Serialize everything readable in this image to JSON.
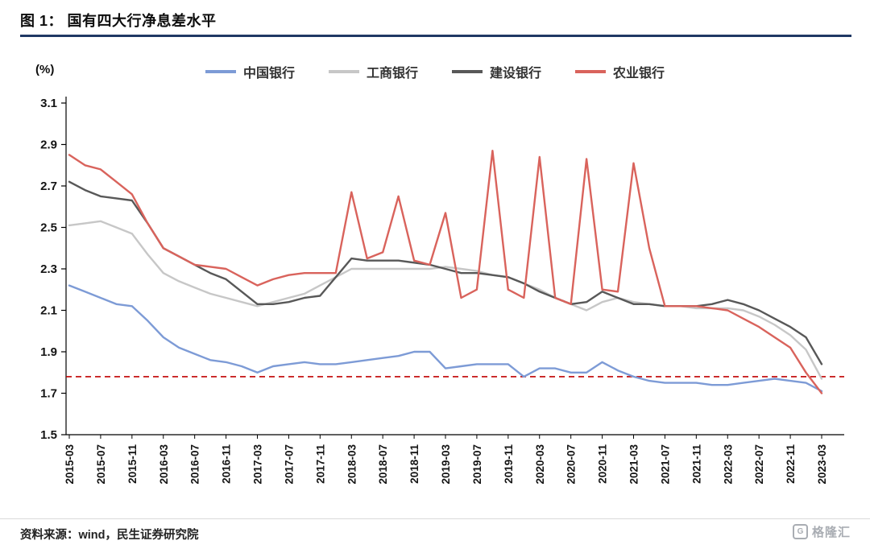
{
  "header": {
    "title": "图 1：  国有四大行净息差水平"
  },
  "chart_data": {
    "type": "line",
    "title": "国有四大行净息差水平",
    "y_axis": {
      "label": "(%)",
      "min": 1.5,
      "max": 3.1,
      "tick_step": 0.2,
      "tick_labels": [
        "1.5",
        "1.7",
        "1.9",
        "2.1",
        "2.3",
        "2.5",
        "2.7",
        "2.9",
        "3.1"
      ]
    },
    "x_labels": [
      "2015-03",
      "2015-07",
      "2015-11",
      "2016-03",
      "2016-07",
      "2016-11",
      "2017-03",
      "2017-07",
      "2017-11",
      "2018-03",
      "2018-07",
      "2018-11",
      "2019-03",
      "2019-07",
      "2019-11",
      "2020-03",
      "2020-07",
      "2020-11",
      "2021-03",
      "2021-07",
      "2021-11",
      "2022-03",
      "2022-07",
      "2022-11",
      "2023-03"
    ],
    "points_per_label": 2,
    "grid": false,
    "legend_position": "top",
    "reference_line": {
      "value": 1.78,
      "color": "#c00000",
      "style": "dashed"
    },
    "series": [
      {
        "name": "中国银行",
        "color": "#7d9bd6",
        "values": [
          2.22,
          2.19,
          2.16,
          2.13,
          2.12,
          2.05,
          1.97,
          1.92,
          1.89,
          1.86,
          1.85,
          1.83,
          1.8,
          1.83,
          1.84,
          1.85,
          1.84,
          1.84,
          1.85,
          1.86,
          1.87,
          1.88,
          1.9,
          1.9,
          1.82,
          1.83,
          1.84,
          1.84,
          1.84,
          1.78,
          1.82,
          1.82,
          1.8,
          1.8,
          1.85,
          1.81,
          1.78,
          1.76,
          1.75,
          1.75,
          1.75,
          1.74,
          1.74,
          1.75,
          1.76,
          1.77,
          1.76,
          1.75,
          1.71
        ]
      },
      {
        "name": "工商银行",
        "color": "#c7c7c7",
        "values": [
          2.51,
          2.52,
          2.53,
          2.5,
          2.47,
          2.37,
          2.28,
          2.24,
          2.21,
          2.18,
          2.16,
          2.14,
          2.12,
          2.14,
          2.16,
          2.18,
          2.22,
          2.26,
          2.3,
          2.3,
          2.3,
          2.3,
          2.3,
          2.3,
          2.31,
          2.3,
          2.29,
          2.27,
          2.26,
          2.23,
          2.2,
          2.16,
          2.13,
          2.1,
          2.14,
          2.16,
          2.14,
          2.13,
          2.12,
          2.12,
          2.11,
          2.11,
          2.11,
          2.1,
          2.07,
          2.03,
          1.98,
          1.91,
          1.77
        ]
      },
      {
        "name": "建设银行",
        "color": "#585858",
        "values": [
          2.72,
          2.68,
          2.65,
          2.64,
          2.63,
          2.52,
          2.4,
          2.36,
          2.32,
          2.28,
          2.25,
          2.19,
          2.13,
          2.13,
          2.14,
          2.16,
          2.17,
          2.26,
          2.35,
          2.34,
          2.34,
          2.34,
          2.33,
          2.32,
          2.3,
          2.28,
          2.28,
          2.27,
          2.26,
          2.23,
          2.19,
          2.16,
          2.13,
          2.14,
          2.19,
          2.16,
          2.13,
          2.13,
          2.12,
          2.12,
          2.12,
          2.13,
          2.15,
          2.13,
          2.1,
          2.06,
          2.02,
          1.97,
          1.84
        ]
      },
      {
        "name": "农业银行",
        "color": "#d9635c",
        "values": [
          2.85,
          2.8,
          2.78,
          2.72,
          2.66,
          2.52,
          2.4,
          2.36,
          2.32,
          2.31,
          2.3,
          2.26,
          2.22,
          2.25,
          2.27,
          2.28,
          2.28,
          2.28,
          2.67,
          2.35,
          2.38,
          2.65,
          2.34,
          2.32,
          2.57,
          2.16,
          2.2,
          2.87,
          2.2,
          2.16,
          2.84,
          2.16,
          2.13,
          2.83,
          2.2,
          2.19,
          2.81,
          2.4,
          2.12,
          2.12,
          2.12,
          2.11,
          2.1,
          2.06,
          2.02,
          1.97,
          1.92,
          1.8,
          1.7
        ]
      }
    ]
  },
  "footer": {
    "source": "资料来源：wind，民生证券研究院",
    "logo_text": "格隆汇",
    "logo_icon_letter": "G"
  }
}
